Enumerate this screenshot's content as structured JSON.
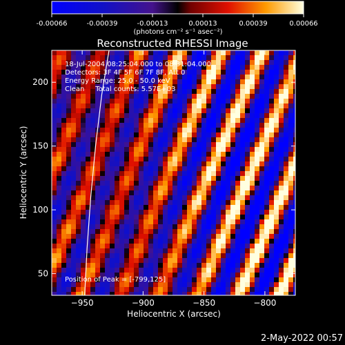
{
  "chart_data": {
    "type": "heatmap",
    "title": "Reconstructed RHESSI Image",
    "xlabel": "Heliocentric X (arcsec)",
    "ylabel": "Heliocentric Y (arcsec)",
    "xlim": [
      -975,
      -775
    ],
    "ylim": [
      33,
      225
    ],
    "xticks": [
      -950,
      -900,
      -850,
      -800
    ],
    "yticks": [
      50,
      100,
      150,
      200
    ],
    "colorbar": {
      "min": -0.00066,
      "max": 0.00066,
      "ticks": [
        "-0.00066",
        "-0.00039",
        "-0.00013",
        "0.00013",
        "0.00039",
        "0.00066"
      ],
      "unit_label": "(photons cm⁻² s⁻¹ asec⁻²)"
    },
    "annotations": [
      "18-Jul-2004 08:25:04.000 to 08:31:04.000",
      "Detectors: 3F 4F 5F 6F 7F 8F, Att 0",
      "Energy Range: 25.0 - 50.0 keV",
      "Clean     Total counts: 5.57E+03"
    ],
    "peak_label": "Position of Peak = [-799,125]",
    "peak": [
      -799,
      125
    ],
    "limb_curve": [
      [
        -948,
        33
      ],
      [
        -946,
        70
      ],
      [
        -943,
        110
      ],
      [
        -939,
        150
      ],
      [
        -934,
        190
      ],
      [
        -928,
        225
      ]
    ],
    "timestamp": "2-May-2022 00:57"
  }
}
